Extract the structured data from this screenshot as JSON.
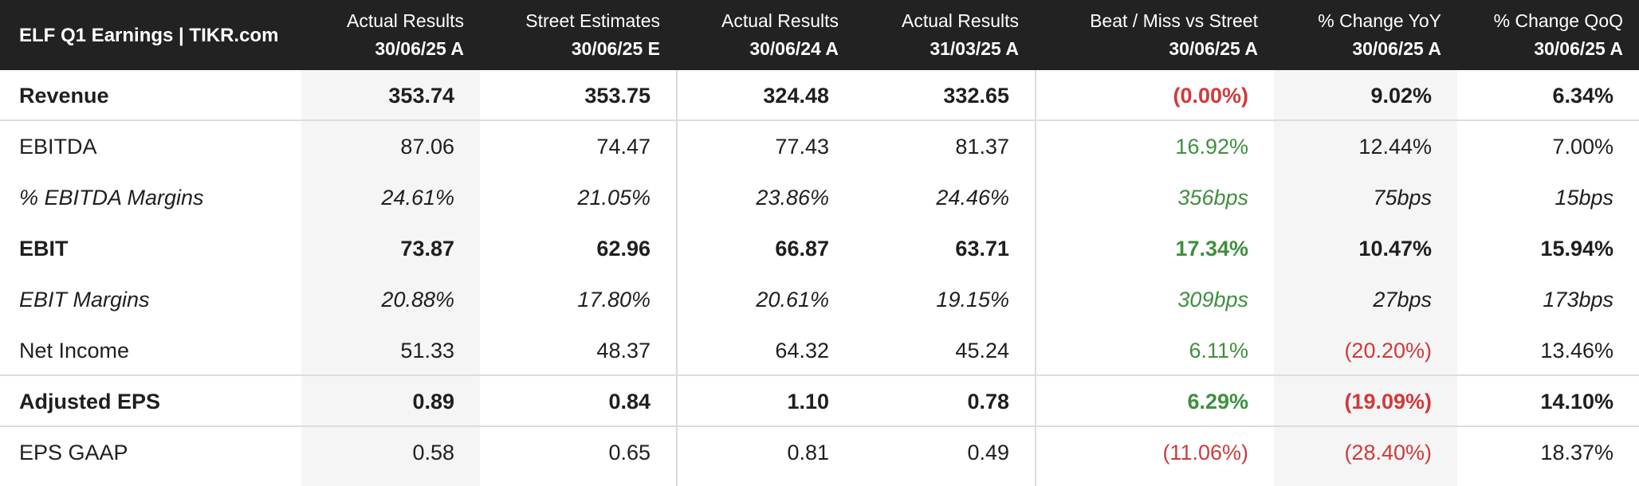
{
  "chart_data": {
    "type": "table",
    "title": "ELF Q1 Earnings | TIKR.com",
    "columns": [
      {
        "label": "Actual Results",
        "date": "30/06/25 A"
      },
      {
        "label": "Street Estimates",
        "date": "30/06/25 E"
      },
      {
        "label": "Actual Results",
        "date": "30/06/24 A"
      },
      {
        "label": "Actual Results",
        "date": "31/03/25 A"
      },
      {
        "label": "Beat / Miss vs Street",
        "date": "30/06/25 A"
      },
      {
        "label": "% Change YoY",
        "date": "30/06/25 A"
      },
      {
        "label": "% Change QoQ",
        "date": "30/06/25 A"
      }
    ],
    "rows": [
      {
        "label": "Revenue",
        "values": [
          "353.74",
          "353.75",
          "324.48",
          "332.65",
          "(0.00%)",
          "9.02%",
          "6.34%"
        ],
        "style": "bold"
      },
      {
        "label": "EBITDA",
        "values": [
          "87.06",
          "74.47",
          "77.43",
          "81.37",
          "16.92%",
          "12.44%",
          "7.00%"
        ],
        "style": "normal"
      },
      {
        "label": "% EBITDA Margins",
        "values": [
          "24.61%",
          "21.05%",
          "23.86%",
          "24.46%",
          "356bps",
          "75bps",
          "15bps"
        ],
        "style": "italic"
      },
      {
        "label": "EBIT",
        "values": [
          "73.87",
          "62.96",
          "66.87",
          "63.71",
          "17.34%",
          "10.47%",
          "15.94%"
        ],
        "style": "bold"
      },
      {
        "label": "EBIT Margins",
        "values": [
          "20.88%",
          "17.80%",
          "20.61%",
          "19.15%",
          "309bps",
          "27bps",
          "173bps"
        ],
        "style": "italic"
      },
      {
        "label": "Net Income",
        "values": [
          "51.33",
          "48.37",
          "64.32",
          "45.24",
          "6.11%",
          "(20.20%)",
          "13.46%"
        ],
        "style": "normal"
      },
      {
        "label": "Adjusted EPS",
        "values": [
          "0.89",
          "0.84",
          "1.10",
          "0.78",
          "6.29%",
          "(19.09%)",
          "14.10%"
        ],
        "style": "bold"
      },
      {
        "label": "EPS GAAP",
        "values": [
          "0.58",
          "0.65",
          "0.81",
          "0.49",
          "(11.06%)",
          "(28.40%)",
          "18.37%"
        ],
        "style": "normal"
      }
    ],
    "colors": {
      "header_bg": "#222222",
      "positive": "#3f8f3f",
      "negative": "#d03a3a",
      "shaded_column": "#f5f5f5"
    }
  }
}
